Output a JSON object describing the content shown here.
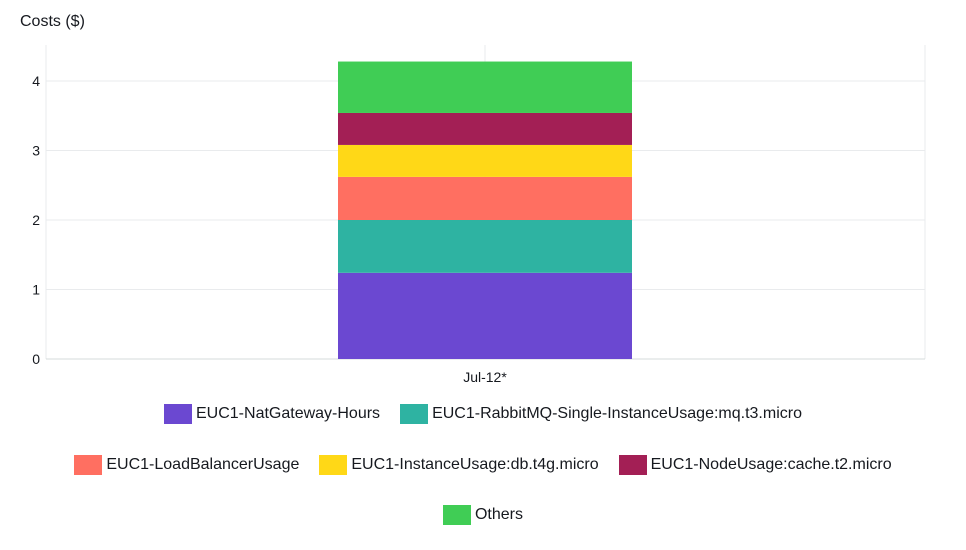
{
  "chart_data": {
    "type": "bar",
    "stacked": true,
    "ylabel": "Costs ($)",
    "xlabel": "",
    "categories": [
      "Jul-12*"
    ],
    "ylim": [
      0,
      4.5
    ],
    "yticks": [
      0,
      1,
      2,
      3,
      4
    ],
    "grid": true,
    "legend_position": "bottom",
    "series": [
      {
        "name": "EUC1-NatGateway-Hours",
        "color": "#6b48d1",
        "values": [
          1.24
        ]
      },
      {
        "name": "EUC1-RabbitMQ-Single-InstanceUsage:mq.t3.micro",
        "color": "#2eb3a2",
        "values": [
          0.76
        ]
      },
      {
        "name": "EUC1-LoadBalancerUsage",
        "color": "#ff6f61",
        "values": [
          0.62
        ]
      },
      {
        "name": "EUC1-InstanceUsage:db.t4g.micro",
        "color": "#ffd817",
        "values": [
          0.46
        ]
      },
      {
        "name": "EUC1-NodeUsage:cache.t2.micro",
        "color": "#a31f55",
        "values": [
          0.46
        ]
      },
      {
        "name": "Others",
        "color": "#40cd55",
        "values": [
          0.74
        ]
      }
    ]
  }
}
